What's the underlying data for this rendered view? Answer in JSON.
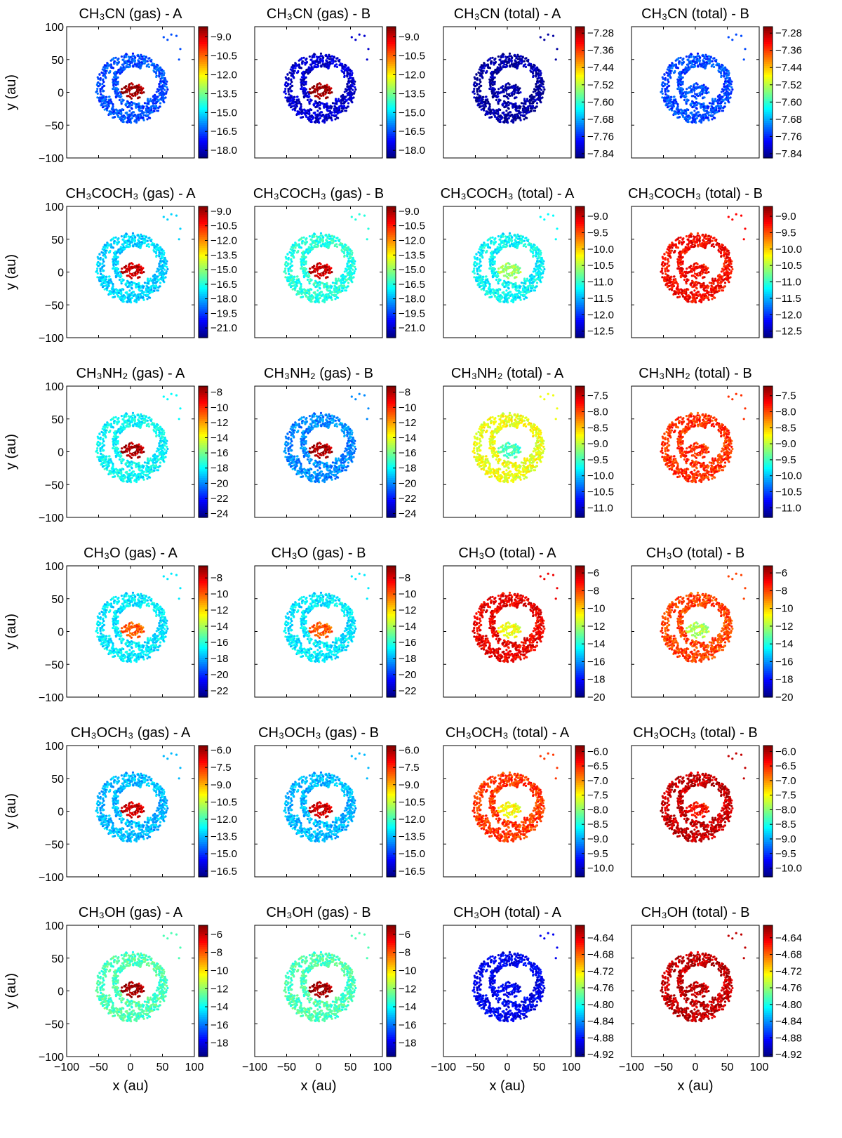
{
  "figure": {
    "col_suffix": [
      "A",
      "B",
      "A",
      "B"
    ],
    "col_mode": [
      "gas",
      "gas",
      "total",
      "total"
    ],
    "x_label": "x (au)",
    "y_label": "y (au)",
    "axis_ticks": [
      "−100",
      "−50",
      "0",
      "50",
      "100"
    ]
  },
  "chart_data": [
    {
      "type": "scatter",
      "panel": "CH3CN (gas) - A",
      "title": "CH₃CN (gas) -  A",
      "xlim": [
        -100,
        100
      ],
      "ylim": [
        -100,
        100
      ],
      "colorbar_ticks": [
        "−9.0",
        "−10.5",
        "−12.0",
        "−13.5",
        "−15.0",
        "−16.5",
        "−18.0"
      ],
      "colorbar_range": [
        -18.6,
        -8.2
      ],
      "core_value": -8.5,
      "envelope_value": -16.5,
      "colormap": "jet"
    },
    {
      "type": "scatter",
      "panel": "CH3CN (gas) - B",
      "title": "CH₃CN (gas) -  B",
      "xlim": [
        -100,
        100
      ],
      "ylim": [
        -100,
        100
      ],
      "colorbar_ticks": [
        "−9.0",
        "−10.5",
        "−12.0",
        "−13.5",
        "−15.0",
        "−16.5",
        "−18.0"
      ],
      "colorbar_range": [
        -18.6,
        -8.2
      ],
      "core_value": -8.5,
      "envelope_value": -17.8,
      "colormap": "jet"
    },
    {
      "type": "scatter",
      "panel": "CH3CN (total) - A",
      "title": "CH₃CN (total) -  A",
      "xlim": [
        -100,
        100
      ],
      "ylim": [
        -100,
        100
      ],
      "colorbar_ticks": [
        "−7.28",
        "−7.36",
        "−7.44",
        "−7.52",
        "−7.60",
        "−7.68",
        "−7.76",
        "−7.84"
      ],
      "colorbar_range": [
        -7.86,
        -7.25
      ],
      "core_value": -7.84,
      "envelope_value": -7.84,
      "colormap": "jet"
    },
    {
      "type": "scatter",
      "panel": "CH3CN (total) - B",
      "title": "CH₃CN (total) -  B",
      "xlim": [
        -100,
        100
      ],
      "ylim": [
        -100,
        100
      ],
      "colorbar_ticks": [
        "−7.28",
        "−7.36",
        "−7.44",
        "−7.52",
        "−7.60",
        "−7.68",
        "−7.76",
        "−7.84"
      ],
      "colorbar_range": [
        -7.86,
        -7.25
      ],
      "core_value": -7.74,
      "envelope_value": -7.74,
      "colormap": "jet"
    },
    {
      "type": "scatter",
      "panel": "CH3COCH3 (gas) - A",
      "title": "CH₃COCH₃ (gas) -  A",
      "xlim": [
        -100,
        100
      ],
      "ylim": [
        -100,
        100
      ],
      "colorbar_ticks": [
        "−9.0",
        "−10.5",
        "−12.0",
        "−13.5",
        "−15.0",
        "−16.5",
        "−18.0",
        "−19.5",
        "−21.0"
      ],
      "colorbar_range": [
        -22,
        -8.5
      ],
      "core_value": -9.5,
      "envelope_value": -17.5,
      "colormap": "jet"
    },
    {
      "type": "scatter",
      "panel": "CH3COCH3 (gas) - B",
      "title": "CH₃COCH₃ (gas) -  B",
      "xlim": [
        -100,
        100
      ],
      "ylim": [
        -100,
        100
      ],
      "colorbar_ticks": [
        "−9.0",
        "−10.5",
        "−12.0",
        "−13.5",
        "−15.0",
        "−16.5",
        "−18.0",
        "−19.5",
        "−21.0"
      ],
      "colorbar_range": [
        -22,
        -8.5
      ],
      "core_value": -9.5,
      "envelope_value": -16.5,
      "colormap": "jet"
    },
    {
      "type": "scatter",
      "panel": "CH3COCH3 (total) - A",
      "title": "CH₃COCH₃ (total) -  A",
      "xlim": [
        -100,
        100
      ],
      "ylim": [
        -100,
        100
      ],
      "colorbar_ticks": [
        "−9.0",
        "−9.5",
        "−10.0",
        "−10.5",
        "−11.0",
        "−11.5",
        "−12.0",
        "−12.5"
      ],
      "colorbar_range": [
        -12.7,
        -8.7
      ],
      "core_value": -10.6,
      "envelope_value": -11.2,
      "colormap": "jet"
    },
    {
      "type": "scatter",
      "panel": "CH3COCH3 (total) - B",
      "title": "CH₃COCH₃ (total) -  B",
      "xlim": [
        -100,
        100
      ],
      "ylim": [
        -100,
        100
      ],
      "colorbar_ticks": [
        "−9.0",
        "−9.5",
        "−10.0",
        "−10.5",
        "−11.0",
        "−11.5",
        "−12.0",
        "−12.5"
      ],
      "colorbar_range": [
        -12.7,
        -8.7
      ],
      "core_value": -9.2,
      "envelope_value": -9.2,
      "colormap": "jet"
    },
    {
      "type": "scatter",
      "panel": "CH3NH2 (gas) - A",
      "title": "CH₃NH₂ (gas) -  A",
      "xlim": [
        -100,
        100
      ],
      "ylim": [
        -100,
        100
      ],
      "colorbar_ticks": [
        "−8",
        "−10",
        "−12",
        "−14",
        "−16",
        "−18",
        "−20",
        "−22",
        "−24"
      ],
      "colorbar_range": [
        -24.5,
        -7.2
      ],
      "core_value": -8,
      "envelope_value": -18,
      "colormap": "jet"
    },
    {
      "type": "scatter",
      "panel": "CH3NH2 (gas) - B",
      "title": "CH₃NH₂ (gas) -  B",
      "xlim": [
        -100,
        100
      ],
      "ylim": [
        -100,
        100
      ],
      "colorbar_ticks": [
        "−8",
        "−10",
        "−12",
        "−14",
        "−16",
        "−18",
        "−20",
        "−22",
        "−24"
      ],
      "colorbar_range": [
        -24.5,
        -7.2
      ],
      "core_value": -8,
      "envelope_value": -20,
      "colormap": "jet"
    },
    {
      "type": "scatter",
      "panel": "CH3NH2 (total) - A",
      "title": "CH₃NH₂ (total) -  A",
      "xlim": [
        -100,
        100
      ],
      "ylim": [
        -100,
        100
      ],
      "colorbar_ticks": [
        "−7.5",
        "−8.0",
        "−8.5",
        "−9.0",
        "−9.5",
        "−10.0",
        "−10.5",
        "−11.0"
      ],
      "colorbar_range": [
        -11.3,
        -7.2
      ],
      "core_value": -9.5,
      "envelope_value": -8.8,
      "colormap": "jet"
    },
    {
      "type": "scatter",
      "panel": "CH3NH2 (total) - B",
      "title": "CH₃NH₂ (total) -  B",
      "xlim": [
        -100,
        100
      ],
      "ylim": [
        -100,
        100
      ],
      "colorbar_ticks": [
        "−7.5",
        "−8.0",
        "−8.5",
        "−9.0",
        "−9.5",
        "−10.0",
        "−10.5",
        "−11.0"
      ],
      "colorbar_range": [
        -11.3,
        -7.2
      ],
      "core_value": -7.9,
      "envelope_value": -7.9,
      "colormap": "jet"
    },
    {
      "type": "scatter",
      "panel": "CH3O (gas) - A",
      "title": "CH₃O (gas) -  A",
      "xlim": [
        -100,
        100
      ],
      "ylim": [
        -100,
        100
      ],
      "colorbar_ticks": [
        "−8",
        "−10",
        "−12",
        "−14",
        "−16",
        "−18",
        "−20",
        "−22"
      ],
      "colorbar_range": [
        -22.8,
        -6.5
      ],
      "core_value": -10,
      "envelope_value": -17,
      "colormap": "jet"
    },
    {
      "type": "scatter",
      "panel": "CH3O (gas) - B",
      "title": "CH₃O (gas) -  B",
      "xlim": [
        -100,
        100
      ],
      "ylim": [
        -100,
        100
      ],
      "colorbar_ticks": [
        "−8",
        "−10",
        "−12",
        "−14",
        "−16",
        "−18",
        "−20",
        "−22"
      ],
      "colorbar_range": [
        -22.8,
        -6.5
      ],
      "core_value": -10,
      "envelope_value": -17,
      "colormap": "jet"
    },
    {
      "type": "scatter",
      "panel": "CH3O (total) - A",
      "title": "CH₃O (total) -  A",
      "xlim": [
        -100,
        100
      ],
      "ylim": [
        -100,
        100
      ],
      "colorbar_ticks": [
        "−6",
        "−8",
        "−10",
        "−12",
        "−14",
        "−16",
        "−18",
        "−20"
      ],
      "colorbar_range": [
        -20,
        -5.2
      ],
      "core_value": -11,
      "envelope_value": -6.8,
      "colormap": "jet"
    },
    {
      "type": "scatter",
      "panel": "CH3O (total) - B",
      "title": "CH₃O (total) -  B",
      "xlim": [
        -100,
        100
      ],
      "ylim": [
        -100,
        100
      ],
      "colorbar_ticks": [
        "−6",
        "−8",
        "−10",
        "−12",
        "−14",
        "−16",
        "−18",
        "−20"
      ],
      "colorbar_range": [
        -20,
        -5.2
      ],
      "core_value": -12,
      "envelope_value": -8,
      "colormap": "jet"
    },
    {
      "type": "scatter",
      "panel": "CH3OCH3 (gas) - A",
      "title": "CH₃OCH₃ (gas) -  A",
      "xlim": [
        -100,
        100
      ],
      "ylim": [
        -100,
        100
      ],
      "colorbar_ticks": [
        "−6.0",
        "−7.5",
        "−9.0",
        "−10.5",
        "−12.0",
        "−13.5",
        "−15.0",
        "−16.5"
      ],
      "colorbar_range": [
        -17,
        -5.6
      ],
      "core_value": -6.5,
      "envelope_value": -13.5,
      "colormap": "jet"
    },
    {
      "type": "scatter",
      "panel": "CH3OCH3 (gas) - B",
      "title": "CH₃OCH₃ (gas) -  B",
      "xlim": [
        -100,
        100
      ],
      "ylim": [
        -100,
        100
      ],
      "colorbar_ticks": [
        "−6.0",
        "−7.5",
        "−9.0",
        "−10.5",
        "−12.0",
        "−13.5",
        "−15.0",
        "−16.5"
      ],
      "colorbar_range": [
        -17,
        -5.6
      ],
      "core_value": -6.5,
      "envelope_value": -13.5,
      "colormap": "jet"
    },
    {
      "type": "scatter",
      "panel": "CH3OCH3 (total) - A",
      "title": "CH₃OCH₃ (total) -  A",
      "xlim": [
        -100,
        100
      ],
      "ylim": [
        -100,
        100
      ],
      "colorbar_ticks": [
        "−6.0",
        "−6.5",
        "−7.0",
        "−7.5",
        "−8.0",
        "−8.5",
        "−9.0",
        "−9.5",
        "−10.0"
      ],
      "colorbar_range": [
        -10.3,
        -5.8
      ],
      "core_value": -7.5,
      "envelope_value": -6.6,
      "colormap": "jet"
    },
    {
      "type": "scatter",
      "panel": "CH3OCH3 (total) - B",
      "title": "CH₃OCH₃ (total) -  B",
      "xlim": [
        -100,
        100
      ],
      "ylim": [
        -100,
        100
      ],
      "colorbar_ticks": [
        "−6.0",
        "−6.5",
        "−7.0",
        "−7.5",
        "−8.0",
        "−8.5",
        "−9.0",
        "−9.5",
        "−10.0"
      ],
      "colorbar_range": [
        -10.3,
        -5.8
      ],
      "core_value": -6.4,
      "envelope_value": -6.1,
      "colormap": "jet"
    },
    {
      "type": "scatter",
      "panel": "CH3OH (gas) - A",
      "title": "CH₃OH (gas) -  A",
      "xlim": [
        -100,
        100
      ],
      "ylim": [
        -100,
        100
      ],
      "colorbar_ticks": [
        "−6",
        "−8",
        "−10",
        "−12",
        "−14",
        "−16",
        "−18"
      ],
      "colorbar_range": [
        -19.5,
        -5
      ],
      "core_value": -5.5,
      "envelope_value": -13,
      "colormap": "jet"
    },
    {
      "type": "scatter",
      "panel": "CH3OH (gas) - B",
      "title": "CH₃OH (gas) -  B",
      "xlim": [
        -100,
        100
      ],
      "ylim": [
        -100,
        100
      ],
      "colorbar_ticks": [
        "−6",
        "−8",
        "−10",
        "−12",
        "−14",
        "−16",
        "−18"
      ],
      "colorbar_range": [
        -19.5,
        -5
      ],
      "core_value": -5.5,
      "envelope_value": -13,
      "colormap": "jet"
    },
    {
      "type": "scatter",
      "panel": "CH3OH (total) - A",
      "title": "CH₃OH (total) -  A",
      "xlim": [
        -100,
        100
      ],
      "ylim": [
        -100,
        100
      ],
      "colorbar_ticks": [
        "−4.64",
        "−4.68",
        "−4.72",
        "−4.76",
        "−4.80",
        "−4.84",
        "−4.88",
        "−4.92"
      ],
      "colorbar_range": [
        -4.925,
        -4.61
      ],
      "core_value": -4.89,
      "envelope_value": -4.89,
      "colormap": "jet"
    },
    {
      "type": "scatter",
      "panel": "CH3OH (total) - B",
      "title": "CH₃OH (total) -  B",
      "xlim": [
        -100,
        100
      ],
      "ylim": [
        -100,
        100
      ],
      "colorbar_ticks": [
        "−4.64",
        "−4.68",
        "−4.72",
        "−4.76",
        "−4.80",
        "−4.84",
        "−4.88",
        "−4.92"
      ],
      "colorbar_range": [
        -4.925,
        -4.61
      ],
      "core_value": -4.63,
      "envelope_value": -4.63,
      "colormap": "jet"
    }
  ]
}
